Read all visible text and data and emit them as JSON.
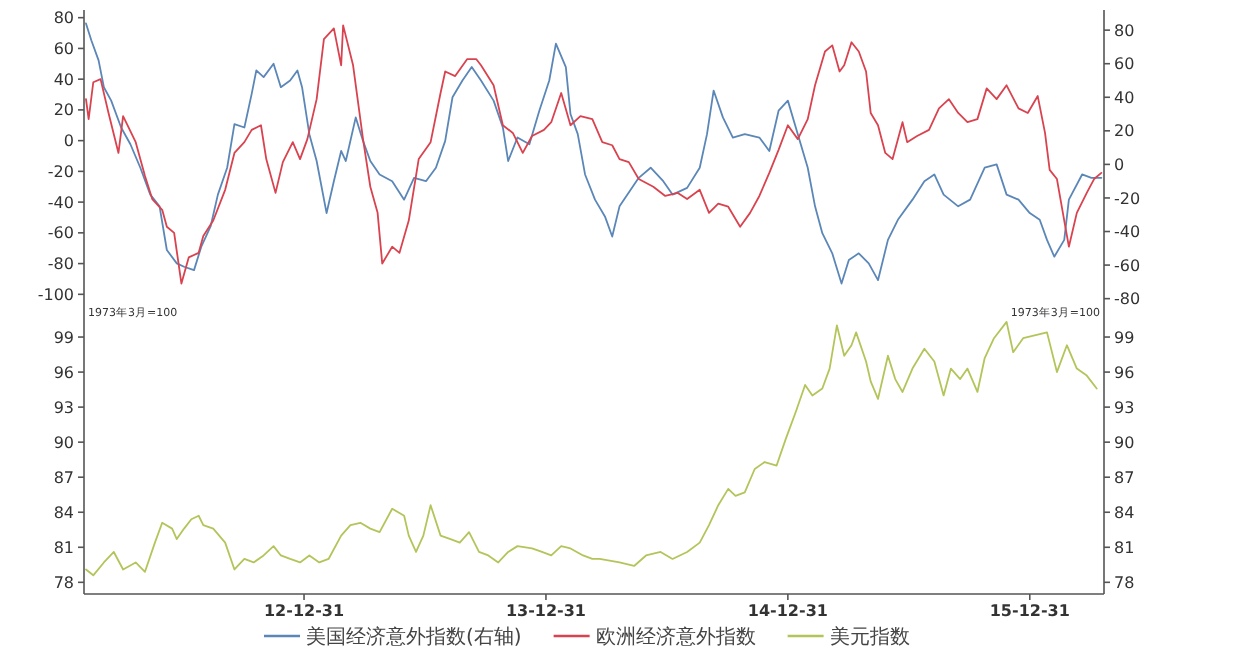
{
  "chart_data": [
    {
      "type": "line",
      "xlim": [
        "2012-02-03",
        "2016-04-21"
      ],
      "ylim": [
        -105,
        85
      ],
      "yticks": [
        -100,
        -80,
        -60,
        -40,
        -20,
        0,
        20,
        40,
        60,
        80
      ],
      "y2lim": [
        -82,
        92
      ],
      "y2ticks": [
        -80,
        -60,
        -40,
        -20,
        0,
        20,
        40,
        60,
        80
      ],
      "tick_labels": "y",
      "legend": "bottom",
      "series": [
        {
          "name": "美国经济意外指数(右轴)",
          "color": "#5b87b8",
          "axis": "y2",
          "x": [
            "2012-02-06",
            "2012-02-14",
            "2012-02-25",
            "2012-03-04",
            "2012-03-15",
            "2012-03-30",
            "2012-04-13",
            "2012-04-28",
            "2012-05-13",
            "2012-05-27",
            "2012-06-07",
            "2012-06-22",
            "2012-07-03",
            "2012-07-18",
            "2012-07-29",
            "2012-08-12",
            "2012-08-23",
            "2012-09-06",
            "2012-09-17",
            "2012-10-02",
            "2012-10-13",
            "2012-10-20",
            "2012-10-31",
            "2012-11-15",
            "2012-11-26",
            "2012-12-10",
            "2012-12-21",
            "2012-12-28",
            "2013-01-08",
            "2013-01-19",
            "2013-02-03",
            "2013-02-14",
            "2013-02-25",
            "2013-03-04",
            "2013-03-19",
            "2013-03-30",
            "2013-04-10",
            "2013-04-24",
            "2013-05-13",
            "2013-05-31",
            "2013-06-15",
            "2013-07-03",
            "2013-07-18",
            "2013-08-01",
            "2013-08-12",
            "2013-08-27",
            "2013-09-10",
            "2013-09-24",
            "2013-10-13",
            "2013-10-27",
            "2013-11-04",
            "2013-11-18",
            "2013-12-06",
            "2013-12-21",
            "2014-01-05",
            "2014-01-15",
            "2014-01-30",
            "2014-02-06",
            "2014-02-17",
            "2014-02-28",
            "2014-03-15",
            "2014-03-30",
            "2014-04-10",
            "2014-04-21",
            "2014-05-20",
            "2014-06-07",
            "2014-06-26",
            "2014-07-10",
            "2014-08-01",
            "2014-08-20",
            "2014-08-31",
            "2014-09-10",
            "2014-09-24",
            "2014-10-09",
            "2014-10-27",
            "2014-11-18",
            "2014-12-03",
            "2014-12-17",
            "2014-12-31",
            "2015-01-15",
            "2015-01-30",
            "2015-02-10",
            "2015-02-21",
            "2015-03-08",
            "2015-03-22",
            "2015-04-02",
            "2015-04-17",
            "2015-05-02",
            "2015-05-16",
            "2015-05-31",
            "2015-06-15",
            "2015-07-07",
            "2015-07-25",
            "2015-08-09",
            "2015-08-23",
            "2015-09-14",
            "2015-10-02",
            "2015-10-24",
            "2015-11-11",
            "2015-11-26",
            "2015-12-14",
            "2015-12-31",
            "2016-01-15",
            "2016-01-26",
            "2016-02-06",
            "2016-02-21",
            "2016-02-28",
            "2016-03-19",
            "2016-04-02",
            "2016-04-17"
          ],
          "values": [
            84,
            74,
            62,
            46,
            38,
            22,
            12,
            -2,
            -18,
            -25,
            -51,
            -59,
            -61,
            -63,
            -49,
            -37,
            -18,
            -2,
            24,
            22,
            42,
            56,
            52,
            60,
            46,
            50,
            56,
            46,
            18,
            2,
            -29,
            -10,
            8,
            2,
            28,
            14,
            2,
            -6,
            -10,
            -21,
            -8,
            -10,
            -2,
            14,
            40,
            50,
            58,
            50,
            38,
            22,
            2,
            16,
            12,
            32,
            50,
            72,
            58,
            30,
            18,
            -6,
            -21,
            -31,
            -43,
            -25,
            -8,
            -2,
            -10,
            -18,
            -14,
            -2,
            18,
            44,
            28,
            16,
            18,
            16,
            8,
            32,
            38,
            18,
            -2,
            -25,
            -41,
            -53,
            -71,
            -57,
            -53,
            -59,
            -69,
            -45,
            -33,
            -21,
            -10,
            -6,
            -18,
            -25,
            -21,
            -2,
            0,
            -18,
            -21,
            -29,
            -33,
            -45,
            -55,
            -45,
            -21,
            -6,
            -8,
            -8
          ]
        },
        {
          "name": "欧洲经济意外指数",
          "color": "#d9434f",
          "x": [
            "2012-02-06",
            "2012-02-10",
            "2012-02-17",
            "2012-02-28",
            "2012-03-11",
            "2012-03-26",
            "2012-04-02",
            "2012-04-21",
            "2012-05-05",
            "2012-05-16",
            "2012-05-31",
            "2012-06-07",
            "2012-06-18",
            "2012-06-29",
            "2012-07-10",
            "2012-07-25",
            "2012-08-01",
            "2012-08-16",
            "2012-09-03",
            "2012-09-17",
            "2012-10-02",
            "2012-10-13",
            "2012-10-27",
            "2012-11-04",
            "2012-11-18",
            "2012-11-29",
            "2012-12-14",
            "2012-12-25",
            "2013-01-05",
            "2013-01-19",
            "2013-01-30",
            "2013-02-14",
            "2013-02-25",
            "2013-02-28",
            "2013-03-15",
            "2013-03-30",
            "2013-04-10",
            "2013-04-21",
            "2013-04-28",
            "2013-05-13",
            "2013-05-24",
            "2013-06-07",
            "2013-06-22",
            "2013-07-10",
            "2013-07-25",
            "2013-08-01",
            "2013-08-16",
            "2013-09-03",
            "2013-09-17",
            "2013-09-24",
            "2013-10-13",
            "2013-10-27",
            "2013-11-11",
            "2013-11-26",
            "2013-12-10",
            "2013-12-28",
            "2014-01-08",
            "2014-01-23",
            "2014-02-06",
            "2014-02-21",
            "2014-03-11",
            "2014-03-26",
            "2014-04-10",
            "2014-04-21",
            "2014-05-05",
            "2014-05-20",
            "2014-06-11",
            "2014-06-29",
            "2014-07-18",
            "2014-08-01",
            "2014-08-20",
            "2014-09-03",
            "2014-09-17",
            "2014-10-02",
            "2014-10-20",
            "2014-11-04",
            "2014-11-18",
            "2014-12-03",
            "2014-12-17",
            "2014-12-31",
            "2015-01-15",
            "2015-01-30",
            "2015-02-10",
            "2015-02-25",
            "2015-03-08",
            "2015-03-19",
            "2015-03-26",
            "2015-04-06",
            "2015-04-17",
            "2015-04-28",
            "2015-05-05",
            "2015-05-16",
            "2015-05-27",
            "2015-06-07",
            "2015-06-22",
            "2015-06-29",
            "2015-07-14",
            "2015-08-01",
            "2015-08-16",
            "2015-08-31",
            "2015-09-14",
            "2015-09-28",
            "2015-10-13",
            "2015-10-27",
            "2015-11-11",
            "2015-11-26",
            "2015-12-14",
            "2015-12-28",
            "2016-01-12",
            "2016-01-23",
            "2016-01-30",
            "2016-02-10",
            "2016-02-21",
            "2016-02-28",
            "2016-03-11",
            "2016-03-26",
            "2016-04-06",
            "2016-04-17"
          ],
          "values": [
            27,
            14,
            38,
            40,
            18,
            -8,
            16,
            -1,
            -23,
            -38,
            -45,
            -56,
            -60,
            -93,
            -76,
            -73,
            -62,
            -52,
            -32,
            -8,
            -1,
            7,
            10,
            -12,
            -34,
            -14,
            -1,
            -12,
            1,
            27,
            66,
            73,
            49,
            75,
            49,
            1,
            -30,
            -47,
            -80,
            -69,
            -73,
            -52,
            -12,
            -1,
            31,
            45,
            42,
            53,
            53,
            49,
            36,
            10,
            5,
            -8,
            3,
            7,
            12,
            31,
            10,
            16,
            14,
            -1,
            -3,
            -12,
            -14,
            -25,
            -30,
            -36,
            -34,
            -38,
            -32,
            -47,
            -41,
            -43,
            -56,
            -47,
            -36,
            -21,
            -6,
            10,
            1,
            14,
            36,
            58,
            62,
            45,
            49,
            64,
            58,
            45,
            18,
            10,
            -8,
            -12,
            12,
            -1,
            3,
            7,
            21,
            27,
            18,
            12,
            14,
            34,
            27,
            36,
            21,
            18,
            29,
            5,
            -19,
            -25,
            -52,
            -69,
            -47,
            -34,
            -25,
            -21
          ]
        }
      ]
    },
    {
      "type": "line",
      "xlim": [
        "2012-02-03",
        "2016-04-21"
      ],
      "xticks": [
        {
          "value": "2012-12-31",
          "label": "12-12-31"
        },
        {
          "value": "2013-12-31",
          "label": "13-12-31"
        },
        {
          "value": "2014-12-31",
          "label": "14-12-31"
        },
        {
          "value": "2015-12-31",
          "label": "15-12-31"
        }
      ],
      "ylim": [
        77,
        102
      ],
      "yticks": [
        78,
        81,
        84,
        87,
        90,
        93,
        96,
        99
      ],
      "y2lim": [
        77,
        102
      ],
      "y2ticks": [
        78,
        81,
        84,
        87,
        90,
        93,
        96,
        99
      ],
      "legend": "bottom",
      "annotations": [
        "1973年3月=100",
        "1973年3月=100"
      ],
      "series": [
        {
          "name": "美元指数",
          "color": "#b5c45a",
          "x": [
            "2012-02-06",
            "2012-02-17",
            "2012-03-04",
            "2012-03-19",
            "2012-04-02",
            "2012-04-21",
            "2012-05-05",
            "2012-05-20",
            "2012-05-31",
            "2012-06-15",
            "2012-06-22",
            "2012-07-03",
            "2012-07-14",
            "2012-07-25",
            "2012-08-01",
            "2012-08-16",
            "2012-09-03",
            "2012-09-17",
            "2012-10-02",
            "2012-10-16",
            "2012-10-31",
            "2012-11-15",
            "2012-11-26",
            "2012-12-10",
            "2012-12-25",
            "2013-01-08",
            "2013-01-23",
            "2013-02-06",
            "2013-02-25",
            "2013-03-11",
            "2013-03-26",
            "2013-04-10",
            "2013-04-24",
            "2013-05-13",
            "2013-05-31",
            "2013-06-07",
            "2013-06-18",
            "2013-06-29",
            "2013-07-10",
            "2013-07-25",
            "2013-08-09",
            "2013-08-23",
            "2013-09-06",
            "2013-09-21",
            "2013-10-05",
            "2013-10-20",
            "2013-11-04",
            "2013-11-18",
            "2013-12-10",
            "2013-12-25",
            "2014-01-08",
            "2014-01-23",
            "2014-02-06",
            "2014-02-25",
            "2014-03-11",
            "2014-03-22",
            "2014-04-21",
            "2014-05-13",
            "2014-05-31",
            "2014-06-22",
            "2014-07-10",
            "2014-08-01",
            "2014-08-20",
            "2014-09-03",
            "2014-09-17",
            "2014-10-02",
            "2014-10-13",
            "2014-10-27",
            "2014-11-11",
            "2014-11-26",
            "2014-12-14",
            "2014-12-28",
            "2015-01-12",
            "2015-01-26",
            "2015-02-06",
            "2015-02-21",
            "2015-03-04",
            "2015-03-15",
            "2015-03-26",
            "2015-04-06",
            "2015-04-13",
            "2015-04-28",
            "2015-05-05",
            "2015-05-16",
            "2015-05-31",
            "2015-06-11",
            "2015-06-22",
            "2015-07-07",
            "2015-07-25",
            "2015-08-09",
            "2015-08-23",
            "2015-09-03",
            "2015-09-17",
            "2015-09-28",
            "2015-10-13",
            "2015-10-24",
            "2015-11-07",
            "2015-11-26",
            "2015-12-06",
            "2015-12-21",
            "2016-01-12",
            "2016-01-26",
            "2016-02-10",
            "2016-02-25",
            "2016-03-11",
            "2016-03-26",
            "2016-04-10"
          ],
          "values": [
            79.1,
            78.6,
            79.7,
            80.6,
            79.1,
            79.7,
            78.9,
            81.4,
            83.1,
            82.6,
            81.7,
            82.6,
            83.4,
            83.7,
            82.9,
            82.6,
            81.4,
            79.1,
            80.0,
            79.7,
            80.3,
            81.1,
            80.3,
            80.0,
            79.7,
            80.3,
            79.7,
            80.0,
            82.0,
            82.9,
            83.1,
            82.6,
            82.3,
            84.3,
            83.7,
            82.0,
            80.6,
            82.0,
            84.6,
            82.0,
            81.7,
            81.4,
            82.3,
            80.6,
            80.3,
            79.7,
            80.6,
            81.1,
            80.9,
            80.6,
            80.3,
            81.1,
            80.9,
            80.3,
            80.0,
            80.0,
            79.7,
            79.4,
            80.3,
            80.6,
            80.0,
            80.6,
            81.4,
            82.9,
            84.6,
            86.0,
            85.4,
            85.7,
            87.7,
            88.3,
            88.0,
            90.3,
            92.6,
            94.9,
            94.0,
            94.6,
            96.3,
            100.0,
            97.4,
            98.3,
            99.4,
            96.9,
            95.2,
            93.7,
            97.4,
            95.4,
            94.3,
            96.3,
            98.0,
            96.9,
            94.0,
            96.3,
            95.4,
            96.3,
            94.3,
            97.2,
            98.9,
            100.3,
            97.7,
            98.9,
            99.2,
            99.4,
            96.0,
            98.3,
            96.3,
            95.7,
            94.6
          ]
        }
      ]
    }
  ]
}
